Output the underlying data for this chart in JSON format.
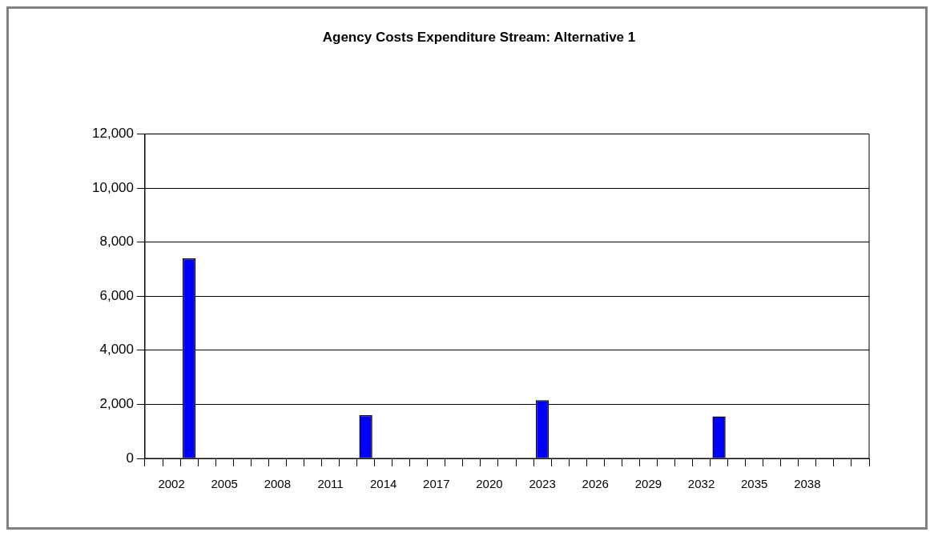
{
  "chart_data": {
    "type": "bar",
    "title": "Agency Costs Expenditure Stream: Alternative 1",
    "categories": [
      null,
      "2002",
      null,
      null,
      "2005",
      null,
      null,
      "2008",
      null,
      null,
      "2011",
      null,
      null,
      "2014",
      null,
      null,
      "2017",
      null,
      null,
      "2020",
      null,
      null,
      "2023",
      null,
      null,
      "2026",
      null,
      null,
      "2029",
      null,
      null,
      "2032",
      null,
      null,
      "2035",
      null,
      null,
      "2038",
      null,
      null,
      null
    ],
    "values": [
      0,
      0,
      7400,
      0,
      0,
      0,
      0,
      0,
      0,
      0,
      0,
      0,
      1600,
      0,
      0,
      0,
      0,
      0,
      0,
      0,
      0,
      0,
      2150,
      0,
      0,
      0,
      0,
      0,
      0,
      0,
      0,
      0,
      1550,
      0,
      0,
      0,
      0,
      0,
      0,
      0,
      0
    ],
    "color": "#0000ff",
    "ylim": [
      0,
      12000
    ],
    "yticks": [
      0,
      {
        "value": 2000,
        "label": "2,000"
      },
      {
        "value": 4000,
        "label": "4,000"
      },
      {
        "value": 6000,
        "label": "6,000"
      },
      {
        "value": 8000,
        "label": "8,000"
      },
      {
        "value": 10000,
        "label": "10,000"
      },
      {
        "value": 12000,
        "label": "12,000"
      }
    ],
    "grid": "y",
    "legend": false
  }
}
